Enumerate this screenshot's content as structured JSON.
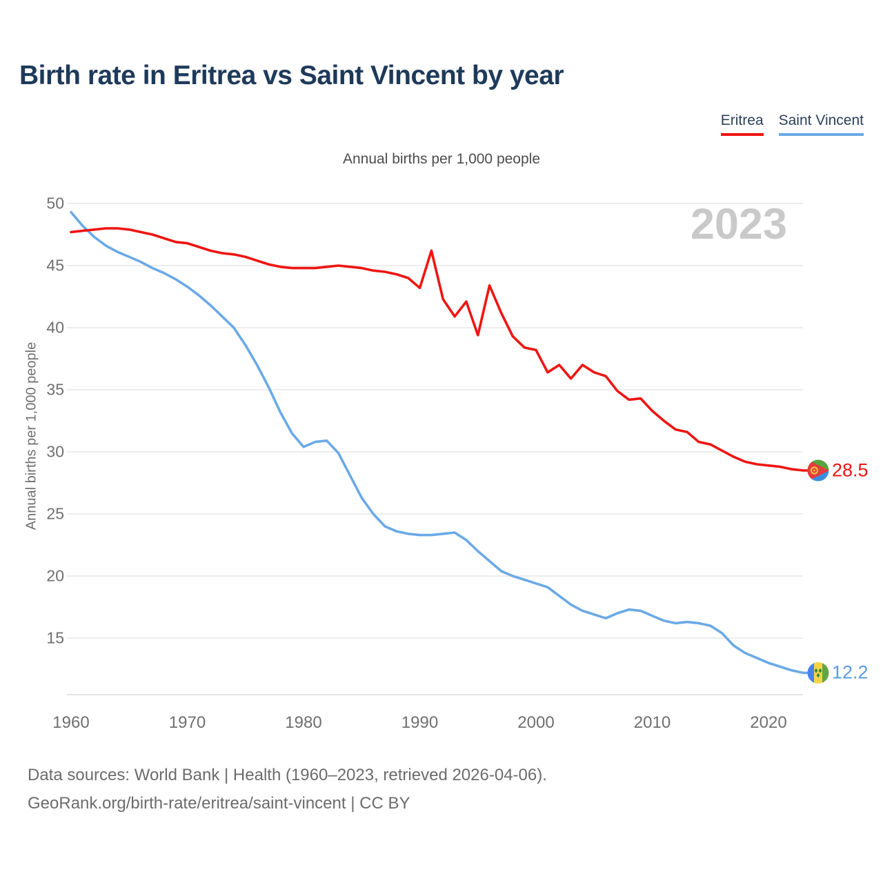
{
  "page_title": "Birth rate in Eritrea vs Saint Vincent by year",
  "subtitle": "Annual births per 1,000 people",
  "watermark": "2023",
  "legend": {
    "items": [
      {
        "label": "Eritrea",
        "color": "#ee1511"
      },
      {
        "label": "Saint Vincent",
        "color": "#6aa9e6"
      }
    ]
  },
  "y_axis": {
    "title": "Annual births per 1,000 people",
    "ticks": [
      50,
      45,
      40,
      35,
      30,
      25,
      20,
      15
    ]
  },
  "x_axis": {
    "ticks": [
      1960,
      1970,
      1980,
      1990,
      2000,
      2010,
      2020
    ]
  },
  "end_labels": [
    {
      "series": "Eritrea",
      "value": "28.5",
      "color": "#ee1511",
      "flag": "eritrea-flag-icon"
    },
    {
      "series": "Saint Vincent",
      "value": "12.2",
      "color": "#5b9be2",
      "flag": "saint-vincent-flag-icon"
    }
  ],
  "footer": {
    "line1": "Data sources: World Bank | Health (1960–2023, retrieved 2026-04-06).",
    "line2": "GeoRank.org/birth-rate/eritrea/saint-vincent | CC BY"
  },
  "chart_data": {
    "type": "line",
    "title": "Birth rate in Eritrea vs Saint Vincent by year",
    "subtitle": "Annual births per 1,000 people",
    "xlabel": "",
    "ylabel": "Annual births per 1,000 people",
    "x_range": [
      1960,
      2023
    ],
    "ylim": [
      10.4,
      50
    ],
    "grid": true,
    "legend_position": "top-right",
    "x": [
      1960,
      1961,
      1962,
      1963,
      1964,
      1965,
      1966,
      1967,
      1968,
      1969,
      1970,
      1971,
      1972,
      1973,
      1974,
      1975,
      1976,
      1977,
      1978,
      1979,
      1980,
      1981,
      1982,
      1983,
      1984,
      1985,
      1986,
      1987,
      1988,
      1989,
      1990,
      1991,
      1992,
      1993,
      1994,
      1995,
      1996,
      1997,
      1998,
      1999,
      2000,
      2001,
      2002,
      2003,
      2004,
      2005,
      2006,
      2007,
      2008,
      2009,
      2010,
      2011,
      2012,
      2013,
      2014,
      2015,
      2016,
      2017,
      2018,
      2019,
      2020,
      2021,
      2022,
      2023
    ],
    "series": [
      {
        "name": "Eritrea",
        "color": "#ee1511",
        "end_value": 28.5,
        "values": [
          47.7,
          47.8,
          47.9,
          48.0,
          48.0,
          47.9,
          47.7,
          47.5,
          47.2,
          46.9,
          46.8,
          46.5,
          46.2,
          46.0,
          45.9,
          45.7,
          45.4,
          45.1,
          44.9,
          44.8,
          44.8,
          44.8,
          44.9,
          45.0,
          44.9,
          44.8,
          44.6,
          44.5,
          44.3,
          44.0,
          43.2,
          46.2,
          42.3,
          40.9,
          42.1,
          39.4,
          43.4,
          41.2,
          39.3,
          38.4,
          38.2,
          36.4,
          37.0,
          35.9,
          37.0,
          36.4,
          36.1,
          34.9,
          34.2,
          34.3,
          33.3,
          32.5,
          31.8,
          31.6,
          30.8,
          30.6,
          30.1,
          29.6,
          29.2,
          29.0,
          28.9,
          28.8,
          28.6,
          28.5
        ]
      },
      {
        "name": "Saint Vincent",
        "color": "#6aa9e6",
        "end_value": 12.2,
        "values": [
          49.3,
          48.2,
          47.3,
          46.6,
          46.1,
          45.7,
          45.3,
          44.8,
          44.4,
          43.9,
          43.3,
          42.6,
          41.8,
          40.9,
          40.0,
          38.6,
          37.0,
          35.2,
          33.2,
          31.5,
          30.4,
          30.8,
          30.9,
          29.9,
          28.1,
          26.3,
          25.0,
          24.0,
          23.6,
          23.4,
          23.3,
          23.3,
          23.4,
          23.5,
          22.9,
          22.0,
          21.2,
          20.4,
          20.0,
          19.7,
          19.4,
          19.1,
          18.4,
          17.7,
          17.2,
          16.9,
          16.6,
          17.0,
          17.3,
          17.2,
          16.8,
          16.4,
          16.2,
          16.3,
          16.2,
          16.0,
          15.4,
          14.4,
          13.8,
          13.4,
          13.0,
          12.7,
          12.4,
          12.2
        ]
      }
    ]
  }
}
